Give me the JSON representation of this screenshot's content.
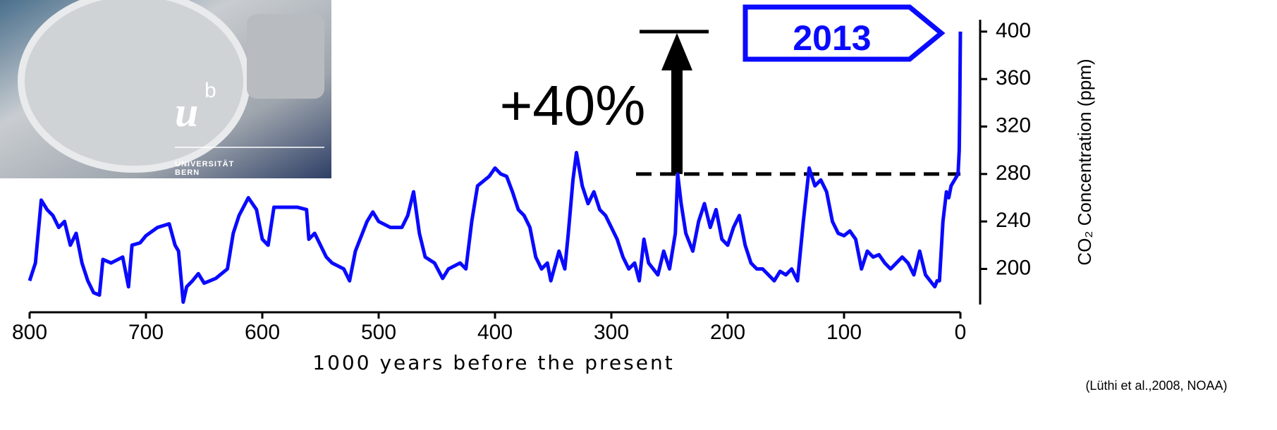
{
  "chart_data": {
    "type": "line",
    "x_label": "1000 years before the present",
    "y_label": "CO₂ Concentration (ppm)",
    "source": "(Lüthi et al.,2008, NOAA)",
    "xlim": [
      800,
      0
    ],
    "xticks": [
      800,
      700,
      600,
      500,
      400,
      300,
      200,
      100,
      0
    ],
    "ylim": [
      170,
      410
    ],
    "yticks": [
      200,
      240,
      280,
      320,
      360,
      400
    ],
    "reference_line": 280,
    "arrow": {
      "from": 280,
      "to": 400,
      "label": "+40%"
    },
    "callout": "2013",
    "series": [
      {
        "color": "#0a0aff",
        "x": [
          800,
          795,
          790,
          785,
          780,
          775,
          770,
          765,
          760,
          755,
          750,
          745,
          740,
          737,
          730,
          720,
          715,
          712,
          705,
          700,
          690,
          680,
          675,
          672,
          668,
          665,
          660,
          655,
          650,
          640,
          630,
          625,
          620,
          612,
          605,
          600,
          595,
          590,
          580,
          570,
          562,
          560,
          555,
          545,
          540,
          530,
          525,
          520,
          510,
          505,
          500,
          490,
          480,
          475,
          470,
          465,
          460,
          452,
          445,
          440,
          430,
          425,
          420,
          415,
          405,
          400,
          395,
          390,
          385,
          380,
          375,
          370,
          365,
          360,
          355,
          352,
          345,
          340,
          337,
          333,
          330,
          325,
          320,
          315,
          310,
          305,
          300,
          295,
          290,
          285,
          280,
          276,
          272,
          268,
          260,
          255,
          250,
          245,
          243,
          240,
          236,
          230,
          225,
          220,
          215,
          210,
          205,
          200,
          195,
          190,
          185,
          180,
          175,
          170,
          165,
          160,
          155,
          150,
          145,
          140,
          135,
          130,
          125,
          120,
          115,
          110,
          105,
          100,
          95,
          90,
          85,
          80,
          75,
          70,
          65,
          60,
          50,
          45,
          40,
          35,
          30,
          22,
          20,
          18,
          15,
          12,
          10,
          8,
          5,
          2,
          1,
          0.5,
          0
        ],
        "values": [
          190,
          205,
          258,
          250,
          245,
          235,
          240,
          220,
          230,
          205,
          190,
          180,
          178,
          208,
          205,
          210,
          185,
          220,
          222,
          228,
          235,
          238,
          220,
          215,
          172,
          185,
          190,
          196,
          188,
          192,
          200,
          230,
          245,
          260,
          250,
          225,
          220,
          252,
          252,
          252,
          250,
          225,
          230,
          210,
          205,
          200,
          190,
          215,
          240,
          248,
          240,
          235,
          235,
          245,
          265,
          230,
          210,
          205,
          192,
          200,
          205,
          200,
          240,
          270,
          278,
          285,
          280,
          278,
          265,
          250,
          245,
          235,
          210,
          200,
          205,
          190,
          215,
          200,
          230,
          275,
          298,
          270,
          255,
          265,
          250,
          245,
          235,
          225,
          210,
          200,
          205,
          190,
          225,
          205,
          195,
          215,
          200,
          230,
          280,
          255,
          230,
          215,
          240,
          255,
          235,
          250,
          225,
          220,
          235,
          245,
          220,
          205,
          200,
          200,
          195,
          190,
          198,
          195,
          200,
          190,
          240,
          285,
          270,
          275,
          265,
          240,
          230,
          228,
          232,
          225,
          200,
          215,
          210,
          212,
          205,
          200,
          210,
          205,
          195,
          215,
          195,
          185,
          190,
          190,
          240,
          265,
          260,
          270,
          275,
          280,
          300,
          340,
          400
        ]
      }
    ]
  },
  "logo": {
    "letter": "u",
    "superscript": "b",
    "lines": [
      "UNIVERSITÄT",
      "BERN"
    ]
  }
}
